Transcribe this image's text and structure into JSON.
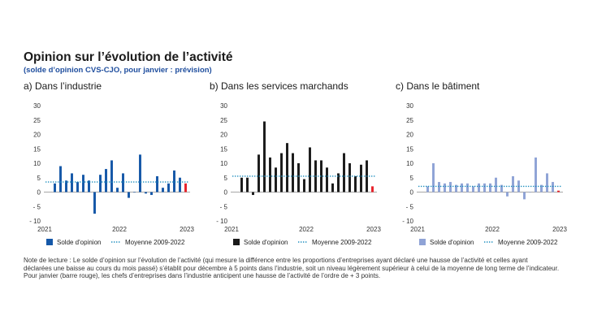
{
  "title": "Opinion sur l’évolution de l’activité",
  "subtitle": "(solde d’opinion CVS-CJO, pour janvier : prévision)",
  "colors": {
    "industrie": "#1558a8",
    "services": "#1a1a1a",
    "batiment": "#8fa3d6",
    "forecast": "#e8222b",
    "mean_line": "#1f8fbf"
  },
  "chart_data": [
    {
      "type": "bar",
      "panel_title": "a)  Dans l’industrie",
      "series_label": "Solde d'opinion",
      "mean_label": "Moyenne 2009-2022",
      "mean_value": 3.5,
      "ylim": [
        -10,
        30
      ],
      "yticks": [
        "30",
        "25",
        "20",
        "15",
        "10",
        "5",
        "0",
        "- 5",
        "- 10"
      ],
      "xticks": [
        "2021",
        "2022",
        "2023"
      ],
      "values": [
        3,
        9,
        4,
        6.5,
        3.5,
        6,
        4,
        -7.5,
        6,
        8,
        11,
        1.5,
        6.5,
        -2,
        0,
        13,
        -0.5,
        -1,
        5.5,
        1.5,
        3,
        7.5,
        5,
        3
      ],
      "forecast_index": 23
    },
    {
      "type": "bar",
      "panel_title": "b)  Dans les services marchands",
      "series_label": "Solde d'opinion",
      "mean_label": "Moyenne 2009-2022",
      "mean_value": 5.5,
      "ylim": [
        -10,
        30
      ],
      "yticks": [
        "30",
        "25",
        "20",
        "15",
        "10",
        "5",
        "0",
        "- 5",
        "- 10"
      ],
      "xticks": [
        "2021",
        "2022",
        "2023"
      ],
      "values": [
        5,
        5,
        -1,
        13,
        24.5,
        12,
        8.5,
        13.5,
        17,
        13.5,
        10,
        4.5,
        15.5,
        11,
        11,
        8.5,
        3,
        6.5,
        13.5,
        10,
        5.5,
        9.5,
        11,
        2
      ],
      "forecast_index": 23
    },
    {
      "type": "bar",
      "panel_title": "c)  Dans le bâtiment",
      "series_label": "Solde d'opinion",
      "mean_label": "Moyenne 2009-2022",
      "mean_value": 2,
      "ylim": [
        -10,
        30
      ],
      "yticks": [
        "30",
        "25",
        "20",
        "15",
        "10",
        "5",
        "0",
        "- 5",
        "- 10"
      ],
      "xticks": [
        "2021",
        "2022",
        "2023"
      ],
      "values": [
        2,
        10,
        3.5,
        3,
        3.5,
        2.5,
        3,
        3,
        2,
        3,
        3,
        3,
        5,
        2.5,
        -1.5,
        5.5,
        4,
        -2.5,
        0,
        12,
        2.5,
        6.5,
        3.5,
        0.5
      ],
      "forecast_index": 23
    }
  ],
  "note": {
    "line1": "Note de lecture : Le solde d’opinion sur l’évolution de l’activité (qui mesure la différence entre les proportions d’entreprises ayant déclaré une hausse de l’activité et celles ayant",
    "line2": "déclarées une baisse au cours du mois passé) s’établit pour décembre à 5 points dans l’industrie, soit un niveau légèrement supérieur à celui de la moyenne de long terme de l’indicateur.",
    "line3": "Pour janvier (barre rouge), les chefs d’entreprises dans l’industrie anticipent une hausse de l’activité de l’ordre de + 3 points."
  }
}
